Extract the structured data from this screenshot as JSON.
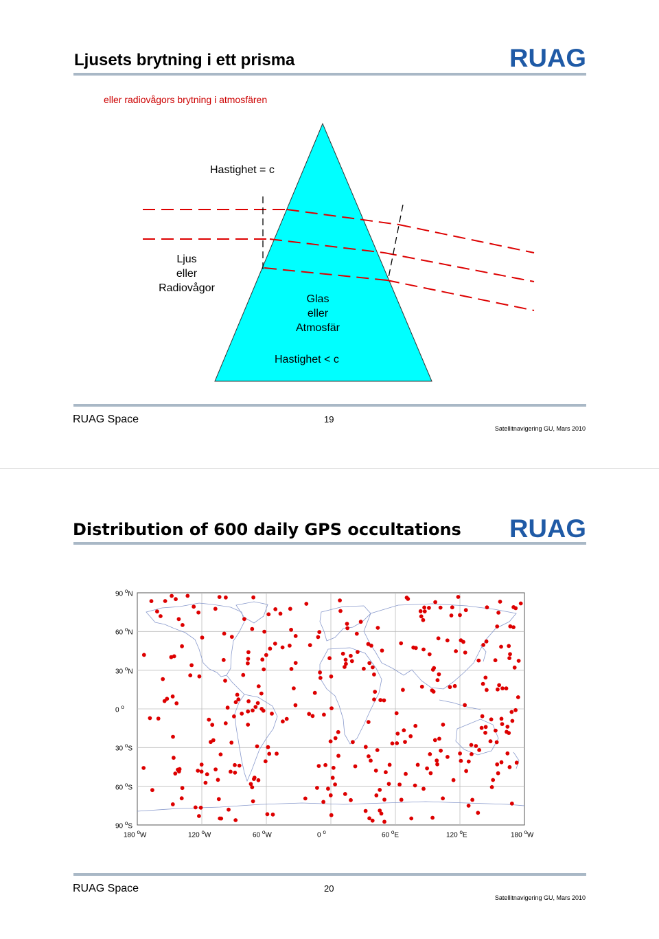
{
  "slide1": {
    "title": "Ljusets brytning i ett prisma",
    "subtitle": "eller radiovågors brytning i atmosfären",
    "logo_text": "RUAG",
    "labels": {
      "speed_outside": "Hastighet = c",
      "light_line1": "Ljus",
      "light_line2": "eller",
      "light_line3": "Radiovågor",
      "medium_line1": "Glas",
      "medium_line2": "eller",
      "medium_line3": "Atmosfär",
      "speed_inside": "Hastighet < c"
    },
    "colors": {
      "prism": "#00ffff",
      "rays": "#dd0000"
    },
    "footer": {
      "company": "RUAG Space",
      "page": "19",
      "course": "Satellitnavigering GU, Mars 2010"
    }
  },
  "slide2": {
    "title": "Distribution of 600 daily GPS occultations",
    "logo_text": "RUAG",
    "map": {
      "y_ticks": [
        "90",
        "60",
        "30",
        "0",
        "30",
        "60",
        "90"
      ],
      "y_dirs": [
        "N",
        "N",
        "N",
        "",
        "S",
        "S",
        "S"
      ],
      "x_ticks": [
        "180",
        "120",
        "60",
        "0",
        "60",
        "120",
        "180"
      ],
      "x_dirs": [
        "W",
        "W",
        "W",
        "",
        "E",
        "E",
        "W"
      ],
      "degree_symbol": "o",
      "point_color": "#dd0000"
    },
    "footer": {
      "company": "RUAG Space",
      "page": "20",
      "course": "Satellitnavigering GU, Mars 2010"
    }
  }
}
